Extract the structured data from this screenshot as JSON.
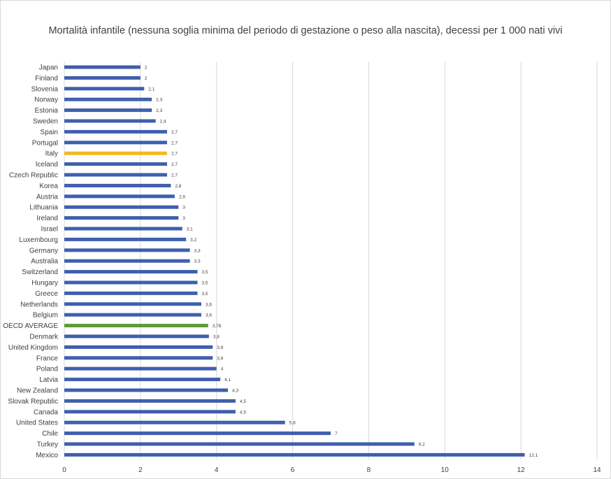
{
  "chart_data": {
    "type": "bar",
    "orientation": "horizontal",
    "title": "Mortalità infantile (nessuna soglia minima del periodo di gestazione o peso alla nascita), decessi per 1 000 nati vivi",
    "xlim": [
      0,
      14
    ],
    "xticks": [
      0,
      2,
      4,
      6,
      8,
      10,
      12,
      14
    ],
    "grid": "vertical",
    "colors": {
      "default": "#3F5FAE",
      "highlight": "#F2B81E",
      "average": "#5B9A37"
    },
    "categories": [
      "Japan",
      "Finland",
      "Slovenia",
      "Norway",
      "Estonia",
      "Sweden",
      "Spain",
      "Portugal",
      "Italy",
      "Iceland",
      "Czech Republic",
      "Korea",
      "Austria",
      "Lithuania",
      "Ireland",
      "Israel",
      "Luxembourg",
      "Germany",
      "Australia",
      "Switzerland",
      "Hungary",
      "Greece",
      "Netherlands",
      "Belgium",
      "OECD AVERAGE",
      "Denmark",
      "United Kingdom",
      "France",
      "Poland",
      "Latvia",
      "New Zealand",
      "Slovak Republic",
      "Canada",
      "United States",
      "Chile",
      "Turkey",
      "Mexico"
    ],
    "values": [
      2,
      2,
      2.1,
      2.3,
      2.3,
      2.4,
      2.7,
      2.7,
      2.7,
      2.7,
      2.7,
      2.8,
      2.9,
      3,
      3,
      3.1,
      3.2,
      3.3,
      3.3,
      3.5,
      3.5,
      3.5,
      3.6,
      3.6,
      3.78,
      3.8,
      3.9,
      3.9,
      4,
      4.1,
      4.3,
      4.5,
      4.5,
      5.8,
      7,
      9.2,
      12.1
    ],
    "value_labels": [
      "2",
      "2",
      "2,1",
      "2,3",
      "2,3",
      "2,4",
      "2,7",
      "2,7",
      "2,7",
      "2,7",
      "2,7",
      "2,8",
      "2,9",
      "3",
      "3",
      "3,1",
      "3,2",
      "3,3",
      "3,3",
      "3,5",
      "3,5",
      "3,5",
      "3,6",
      "3,6",
      "3,78",
      "3,8",
      "3,9",
      "3,9",
      "4",
      "4,1",
      "4,3",
      "4,5",
      "4,5",
      "5,8",
      "7",
      "9,2",
      "12,1"
    ],
    "highlight": {
      "Italy": "highlight",
      "OECD AVERAGE": "average"
    }
  }
}
